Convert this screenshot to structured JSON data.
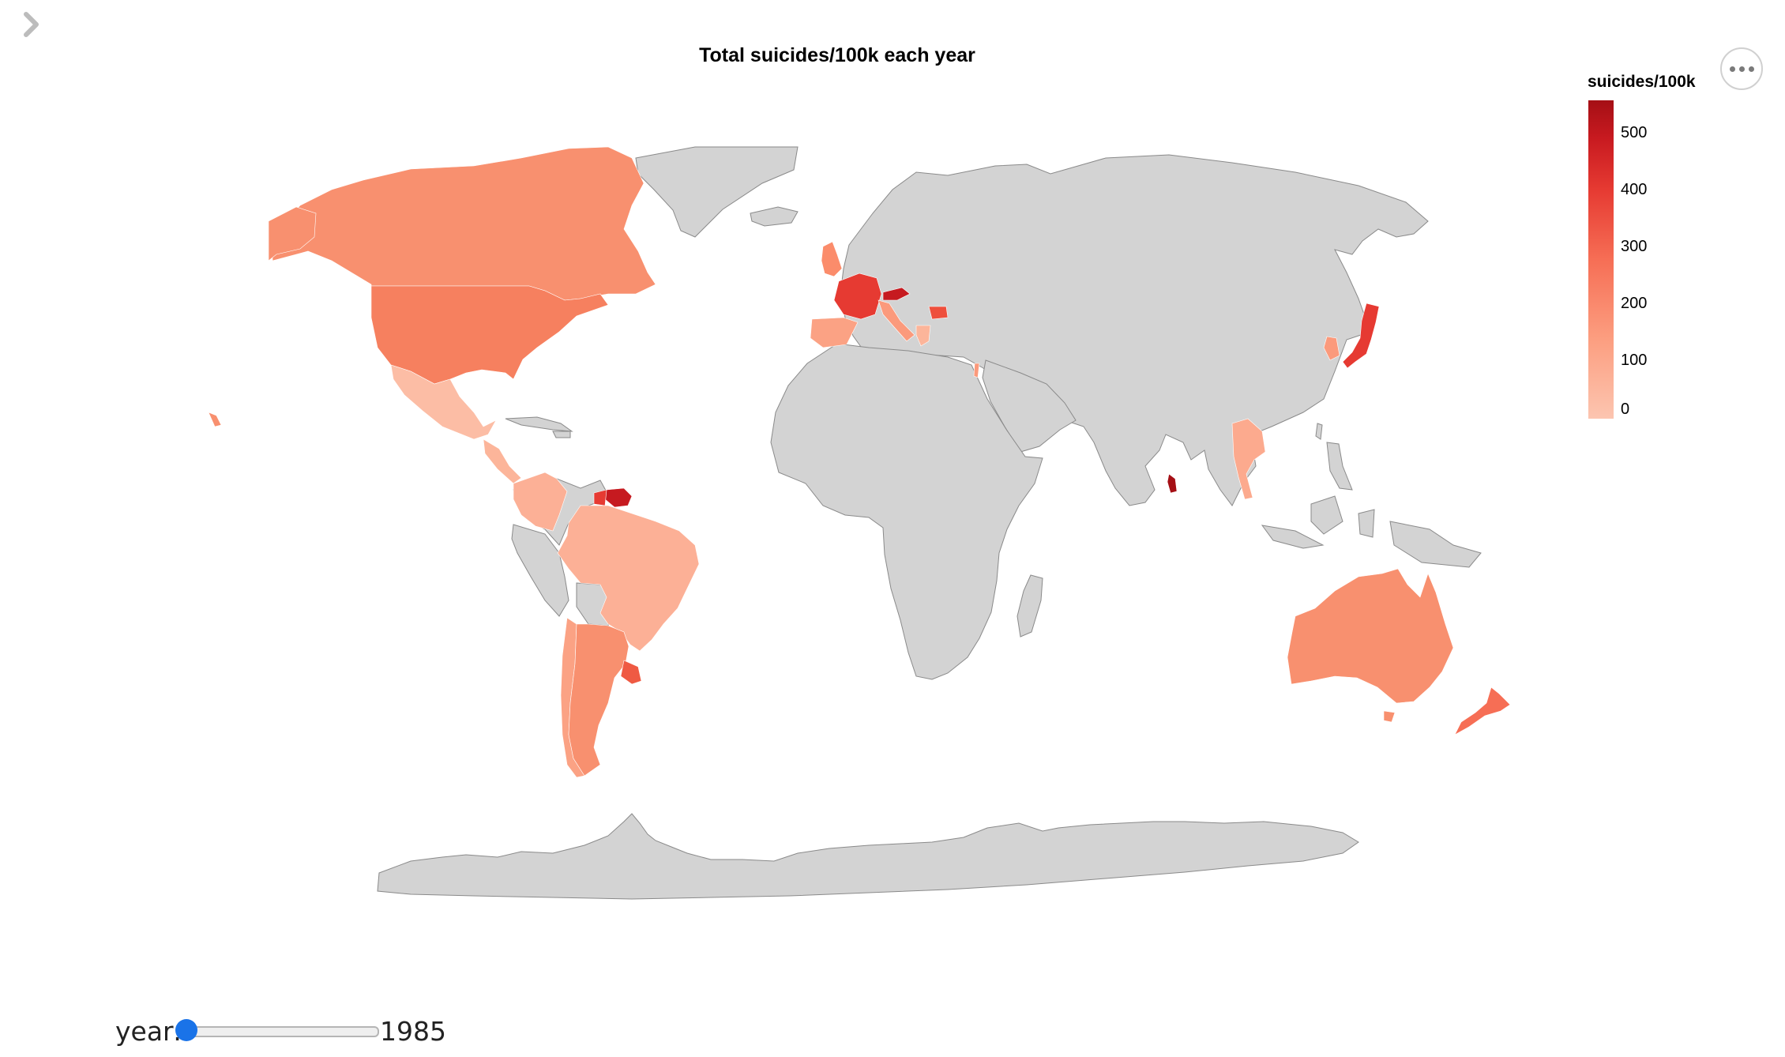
{
  "chart_data": {
    "type": "choropleth",
    "title": "Total suicides/100k each year",
    "colorbar": {
      "title": "suicides/100k",
      "ticks": [
        "0",
        "100",
        "200",
        "300",
        "400",
        "500"
      ],
      "range": [
        0,
        560
      ],
      "colorscale": [
        "#fcc5b0",
        "#fc9e80",
        "#f66e55",
        "#e63a32",
        "#c81a20",
        "#a50f15"
      ],
      "no_data_color": "#d3d3d3"
    },
    "regions": [
      {
        "id": "Canada",
        "value": 165
      },
      {
        "id": "United States",
        "value": 185
      },
      {
        "id": "Mexico",
        "value": 50
      },
      {
        "id": "Guatemala",
        "value": 60
      },
      {
        "id": "Colombia",
        "value": 75
      },
      {
        "id": "Brazil",
        "value": 80
      },
      {
        "id": "Suriname",
        "value": 520
      },
      {
        "id": "Guyana",
        "value": 230
      },
      {
        "id": "Chile",
        "value": 95
      },
      {
        "id": "Argentina",
        "value": 150
      },
      {
        "id": "Uruguay",
        "value": 230
      },
      {
        "id": "Paraguay",
        "value": 65
      },
      {
        "id": "United Kingdom",
        "value": 140
      },
      {
        "id": "France",
        "value": 325
      },
      {
        "id": "Spain",
        "value": 130
      },
      {
        "id": "Italy",
        "value": 160
      },
      {
        "id": "Austria",
        "value": 360
      },
      {
        "id": "Bulgaria",
        "value": 250
      },
      {
        "id": "Greece",
        "value": 80
      },
      {
        "id": "Israel",
        "value": 110
      },
      {
        "id": "Kuwait",
        "value": 40
      },
      {
        "id": "Sri Lanka",
        "value": 545
      },
      {
        "id": "Thailand",
        "value": 110
      },
      {
        "id": "South Korea",
        "value": 140
      },
      {
        "id": "Japan",
        "value": 290
      },
      {
        "id": "Australia",
        "value": 170
      },
      {
        "id": "New Zealand",
        "value": 205
      }
    ]
  },
  "slider": {
    "label": "year:",
    "value": "1985",
    "min": 1985,
    "max": 2016
  },
  "ui": {
    "expand_icon": "chevron-right-icon",
    "menu_icon": "ellipsis-icon"
  }
}
